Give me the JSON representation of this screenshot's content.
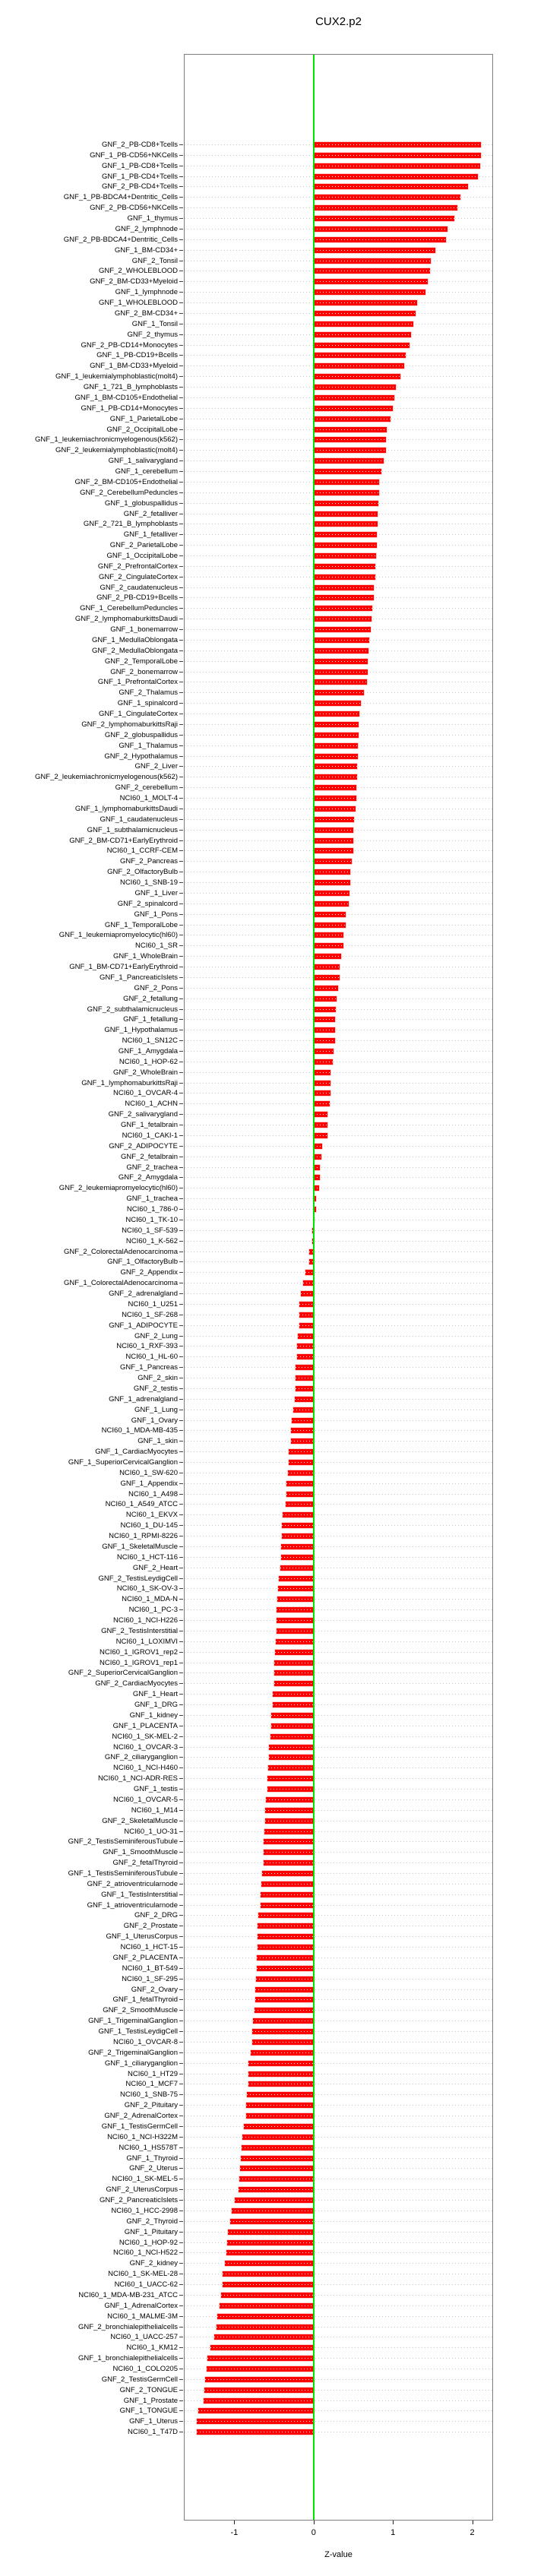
{
  "chart_data": {
    "type": "bar",
    "orientation": "horizontal",
    "title": "CUX2.p2",
    "xlabel": "Z-value",
    "x_ticks": [
      -1,
      0,
      1,
      2
    ],
    "x_tick_labels": [
      "-1",
      "0",
      "1",
      "2"
    ],
    "xlim": [
      -1.64,
      2.26
    ],
    "zero_reference_line": 0,
    "grid": "dotted-row-guides",
    "legend": "none",
    "colors": {
      "bar": "#ff0000",
      "zero_line": "#00e400",
      "guide_dots": "#c9c9c9",
      "box_border": "#7d7d7d",
      "text": "#000000"
    },
    "categories": [
      "GNF_2_PB-CD8+Tcells",
      "GNF_1_PB-CD56+NKCells",
      "GNF_1_PB-CD8+Tcells",
      "GNF_1_PB-CD4+Tcells",
      "GNF_2_PB-CD4+Tcells",
      "GNF_1_PB-BDCA4+Dentritic_Cells",
      "GNF_2_PB-CD56+NKCells",
      "GNF_1_thymus",
      "GNF_2_lymphnode",
      "GNF_2_PB-BDCA4+Dentritic_Cells",
      "GNF_1_BM-CD34+",
      "GNF_2_Tonsil",
      "GNF_2_WHOLEBLOOD",
      "GNF_2_BM-CD33+Myeloid",
      "GNF_1_lymphnode",
      "GNF_1_WHOLEBLOOD",
      "GNF_2_BM-CD34+",
      "GNF_1_Tonsil",
      "GNF_2_thymus",
      "GNF_2_PB-CD14+Monocytes",
      "GNF_1_PB-CD19+Bcells",
      "GNF_1_BM-CD33+Myeloid",
      "GNF_1_leukemialymphoblastic(molt4)",
      "GNF_1_721_B_lymphoblasts",
      "GNF_1_BM-CD105+Endothelial",
      "GNF_1_PB-CD14+Monocytes",
      "GNF_1_ParietalLobe",
      "GNF_2_OccipitalLobe",
      "GNF_1_leukemiachronicmyelogenous(k562)",
      "GNF_2_leukemialymphoblastic(molt4)",
      "GNF_1_salivarygland",
      "GNF_1_cerebellum",
      "GNF_2_BM-CD105+Endothelial",
      "GNF_2_CerebellumPeduncles",
      "GNF_1_globuspallidus",
      "GNF_2_fetalliver",
      "GNF_2_721_B_lymphoblasts",
      "GNF_1_fetalliver",
      "GNF_2_ParietalLobe",
      "GNF_1_OccipitalLobe",
      "GNF_2_PrefrontalCortex",
      "GNF_2_CingulateCortex",
      "GNF_2_caudatenucleus",
      "GNF_2_PB-CD19+Bcells",
      "GNF_1_CerebellumPeduncles",
      "GNF_2_lymphomaburkittsDaudi",
      "GNF_1_bonemarrow",
      "GNF_1_MedullaOblongata",
      "GNF_2_MedullaOblongata",
      "GNF_2_TemporalLobe",
      "GNF_2_bonemarrow",
      "GNF_1_PrefrontalCortex",
      "GNF_2_Thalamus",
      "GNF_1_spinalcord",
      "GNF_1_CingulateCortex",
      "GNF_2_lymphomaburkittsRaji",
      "GNF_2_globuspallidus",
      "GNF_1_Thalamus",
      "GNF_2_Hypothalamus",
      "GNF_2_Liver",
      "GNF_2_leukemiachronicmyelogenous(k562)",
      "GNF_2_cerebellum",
      "NCI60_1_MOLT-4",
      "GNF_1_lymphomaburkittsDaudi",
      "GNF_1_caudatenucleus",
      "GNF_1_subthalamicnucleus",
      "GNF_2_BM-CD71+EarlyErythroid",
      "NCI60_1_CCRF-CEM",
      "GNF_2_Pancreas",
      "GNF_2_OlfactoryBulb",
      "NCI60_1_SNB-19",
      "GNF_1_Liver",
      "GNF_2_spinalcord",
      "GNF_1_Pons",
      "GNF_1_TemporalLobe",
      "GNF_1_leukemiapromyelocytic(hl60)",
      "NCI60_1_SR",
      "GNF_1_WholeBrain",
      "GNF_1_BM-CD71+EarlyErythroid",
      "GNF_1_PancreaticIslets",
      "GNF_2_Pons",
      "GNF_2_fetallung",
      "GNF_2_subthalamicnucleus",
      "GNF_1_fetallung",
      "GNF_1_Hypothalamus",
      "NCI60_1_SN12C",
      "GNF_1_Amygdala",
      "NCI60_1_HOP-62",
      "GNF_2_WholeBrain",
      "GNF_1_lymphomaburkittsRaji",
      "NCI60_1_OVCAR-4",
      "NCI60_1_ACHN",
      "GNF_2_salivarygland",
      "GNF_1_fetalbrain",
      "NCI60_1_CAKI-1",
      "GNF_2_ADIPOCYTE",
      "GNF_2_fetalbrain",
      "GNF_2_trachea",
      "GNF_2_Amygdala",
      "GNF_2_leukemiapromyelocytic(hl60)",
      "GNF_1_trachea",
      "NCI60_1_786-0",
      "NCI60_1_TK-10",
      "NCI60_1_SF-539",
      "NCI60_1_K-562",
      "GNF_2_ColorectalAdenocarcinoma",
      "GNF_1_OlfactoryBulb",
      "GNF_2_Appendix",
      "GNF_1_ColorectalAdenocarcinoma",
      "GNF_2_adrenalgland",
      "NCI60_1_U251",
      "NCI60_1_SF-268",
      "GNF_1_ADIPOCYTE",
      "GNF_2_Lung",
      "NCI60_1_RXF-393",
      "NCI60_1_HL-60",
      "GNF_1_Pancreas",
      "GNF_2_skin",
      "GNF_2_testis",
      "GNF_1_adrenalgland",
      "GNF_1_Lung",
      "GNF_1_Ovary",
      "NCI60_1_MDA-MB-435",
      "GNF_1_skin",
      "GNF_1_CardiacMyocytes",
      "GNF_1_SuperiorCervicalGanglion",
      "NCI60_1_SW-620",
      "GNF_1_Appendix",
      "NCI60_1_A498",
      "NCI60_1_A549_ATCC",
      "NCI60_1_EKVX",
      "NCI60_1_DU-145",
      "NCI60_1_RPMI-8226",
      "GNF_1_SkeletalMuscle",
      "NCI60_1_HCT-116",
      "GNF_2_Heart",
      "GNF_2_TestisLeydigCell",
      "NCI60_1_SK-OV-3",
      "NCI60_1_MDA-N",
      "NCI60_1_PC-3",
      "NCI60_1_NCI-H226",
      "GNF_2_TestisInterstitial",
      "NCI60_1_LOXIMVI",
      "NCI60_1_IGROV1_rep2",
      "NCI60_1_IGROV1_rep1",
      "GNF_2_SuperiorCervicalGanglion",
      "GNF_2_CardiacMyocytes",
      "GNF_1_Heart",
      "GNF_1_DRG",
      "GNF_1_kidney",
      "GNF_1_PLACENTA",
      "NCI60_1_SK-MEL-2",
      "NCI60_1_OVCAR-3",
      "GNF_2_ciliaryganglion",
      "NCI60_1_NCI-H460",
      "NCI60_1_NCI-ADR-RES",
      "GNF_1_testis",
      "NCI60_1_OVCAR-5",
      "NCI60_1_M14",
      "GNF_2_SkeletalMuscle",
      "NCI60_1_UO-31",
      "GNF_2_TestisSeminiferousTubule",
      "GNF_1_SmoothMuscle",
      "GNF_2_fetalThyroid",
      "GNF_1_TestisSeminiferousTubule",
      "GNF_2_atrioventricularnode",
      "GNF_1_TestisInterstitial",
      "GNF_1_atrioventricularnode",
      "GNF_2_DRG",
      "GNF_2_Prostate",
      "GNF_1_UterusCorpus",
      "NCI60_1_HCT-15",
      "GNF_2_PLACENTA",
      "NCI60_1_BT-549",
      "NCI60_1_SF-295",
      "GNF_2_Ovary",
      "GNF_1_fetalThyroid",
      "GNF_2_SmoothMuscle",
      "GNF_1_TrigeminalGanglion",
      "GNF_1_TestisLeydigCell",
      "NCI60_1_OVCAR-8",
      "GNF_2_TrigeminalGanglion",
      "GNF_1_ciliaryganglion",
      "NCI60_1_HT29",
      "NCI60_1_MCF7",
      "NCI60_1_SNB-75",
      "GNF_2_Pituitary",
      "GNF_2_AdrenalCortex",
      "GNF_1_TestisGermCell",
      "NCI60_1_NCI-H322M",
      "NCI60_1_HS578T",
      "GNF_1_Thyroid",
      "GNF_2_Uterus",
      "NCI60_1_SK-MEL-5",
      "GNF_2_UterusCorpus",
      "GNF_2_PancreaticIslets",
      "NCI60_1_HCC-2998",
      "GNF_2_Thyroid",
      "GNF_1_Pituitary",
      "NCI60_1_HOP-92",
      "NCI60_1_NCI-H522",
      "GNF_2_kidney",
      "NCI60_1_SK-MEL-28",
      "NCI60_1_UACC-62",
      "NCI60_1_MDA-MB-231_ATCC",
      "GNF_1_AdrenalCortex",
      "NCI60_1_MALME-3M",
      "GNF_2_bronchialepithelialcells",
      "NCI60_1_UACC-257",
      "NCI60_1_KM12",
      "GNF_1_bronchialepithelialcells",
      "NCI60_1_COLO205",
      "GNF_2_TestisGermCell",
      "GNF_2_TONGUE",
      "GNF_1_Prostate",
      "GNF_1_TONGUE",
      "GNF_1_Uterus",
      "NCI60_1_T47D"
    ],
    "values": [
      2.11,
      2.11,
      2.1,
      2.07,
      1.95,
      1.85,
      1.81,
      1.77,
      1.69,
      1.67,
      1.53,
      1.48,
      1.47,
      1.44,
      1.41,
      1.3,
      1.29,
      1.26,
      1.23,
      1.21,
      1.16,
      1.14,
      1.09,
      1.04,
      1.02,
      1.0,
      0.97,
      0.92,
      0.91,
      0.91,
      0.88,
      0.85,
      0.83,
      0.83,
      0.82,
      0.81,
      0.81,
      0.8,
      0.8,
      0.79,
      0.78,
      0.78,
      0.76,
      0.76,
      0.74,
      0.73,
      0.72,
      0.7,
      0.69,
      0.68,
      0.68,
      0.67,
      0.63,
      0.6,
      0.58,
      0.57,
      0.57,
      0.56,
      0.56,
      0.55,
      0.55,
      0.54,
      0.54,
      0.53,
      0.51,
      0.5,
      0.5,
      0.5,
      0.48,
      0.46,
      0.46,
      0.45,
      0.44,
      0.4,
      0.4,
      0.38,
      0.38,
      0.35,
      0.33,
      0.33,
      0.31,
      0.29,
      0.28,
      0.27,
      0.27,
      0.27,
      0.25,
      0.24,
      0.21,
      0.21,
      0.21,
      0.2,
      0.17,
      0.17,
      0.17,
      0.11,
      0.1,
      0.08,
      0.08,
      0.07,
      0.03,
      0.03,
      0.01,
      -0.02,
      -0.02,
      -0.06,
      -0.06,
      -0.1,
      -0.13,
      -0.16,
      -0.18,
      -0.18,
      -0.18,
      -0.2,
      -0.21,
      -0.21,
      -0.23,
      -0.23,
      -0.23,
      -0.24,
      -0.26,
      -0.28,
      -0.29,
      -0.29,
      -0.31,
      -0.31,
      -0.32,
      -0.34,
      -0.34,
      -0.35,
      -0.39,
      -0.4,
      -0.4,
      -0.41,
      -0.41,
      -0.42,
      -0.44,
      -0.45,
      -0.46,
      -0.47,
      -0.47,
      -0.47,
      -0.48,
      -0.49,
      -0.5,
      -0.5,
      -0.5,
      -0.52,
      -0.52,
      -0.53,
      -0.53,
      -0.54,
      -0.56,
      -0.56,
      -0.57,
      -0.58,
      -0.58,
      -0.6,
      -0.61,
      -0.61,
      -0.62,
      -0.63,
      -0.63,
      -0.63,
      -0.65,
      -0.66,
      -0.67,
      -0.67,
      -0.7,
      -0.71,
      -0.71,
      -0.71,
      -0.72,
      -0.72,
      -0.73,
      -0.74,
      -0.74,
      -0.75,
      -0.76,
      -0.77,
      -0.77,
      -0.79,
      -0.82,
      -0.82,
      -0.82,
      -0.84,
      -0.85,
      -0.85,
      -0.88,
      -0.9,
      -0.91,
      -0.92,
      -0.93,
      -0.94,
      -0.95,
      -0.99,
      -1.03,
      -1.05,
      -1.08,
      -1.09,
      -1.1,
      -1.12,
      -1.15,
      -1.15,
      -1.17,
      -1.19,
      -1.21,
      -1.22,
      -1.25,
      -1.3,
      -1.34,
      -1.35,
      -1.37,
      -1.38,
      -1.39,
      -1.45,
      -1.47,
      -1.47
    ]
  }
}
